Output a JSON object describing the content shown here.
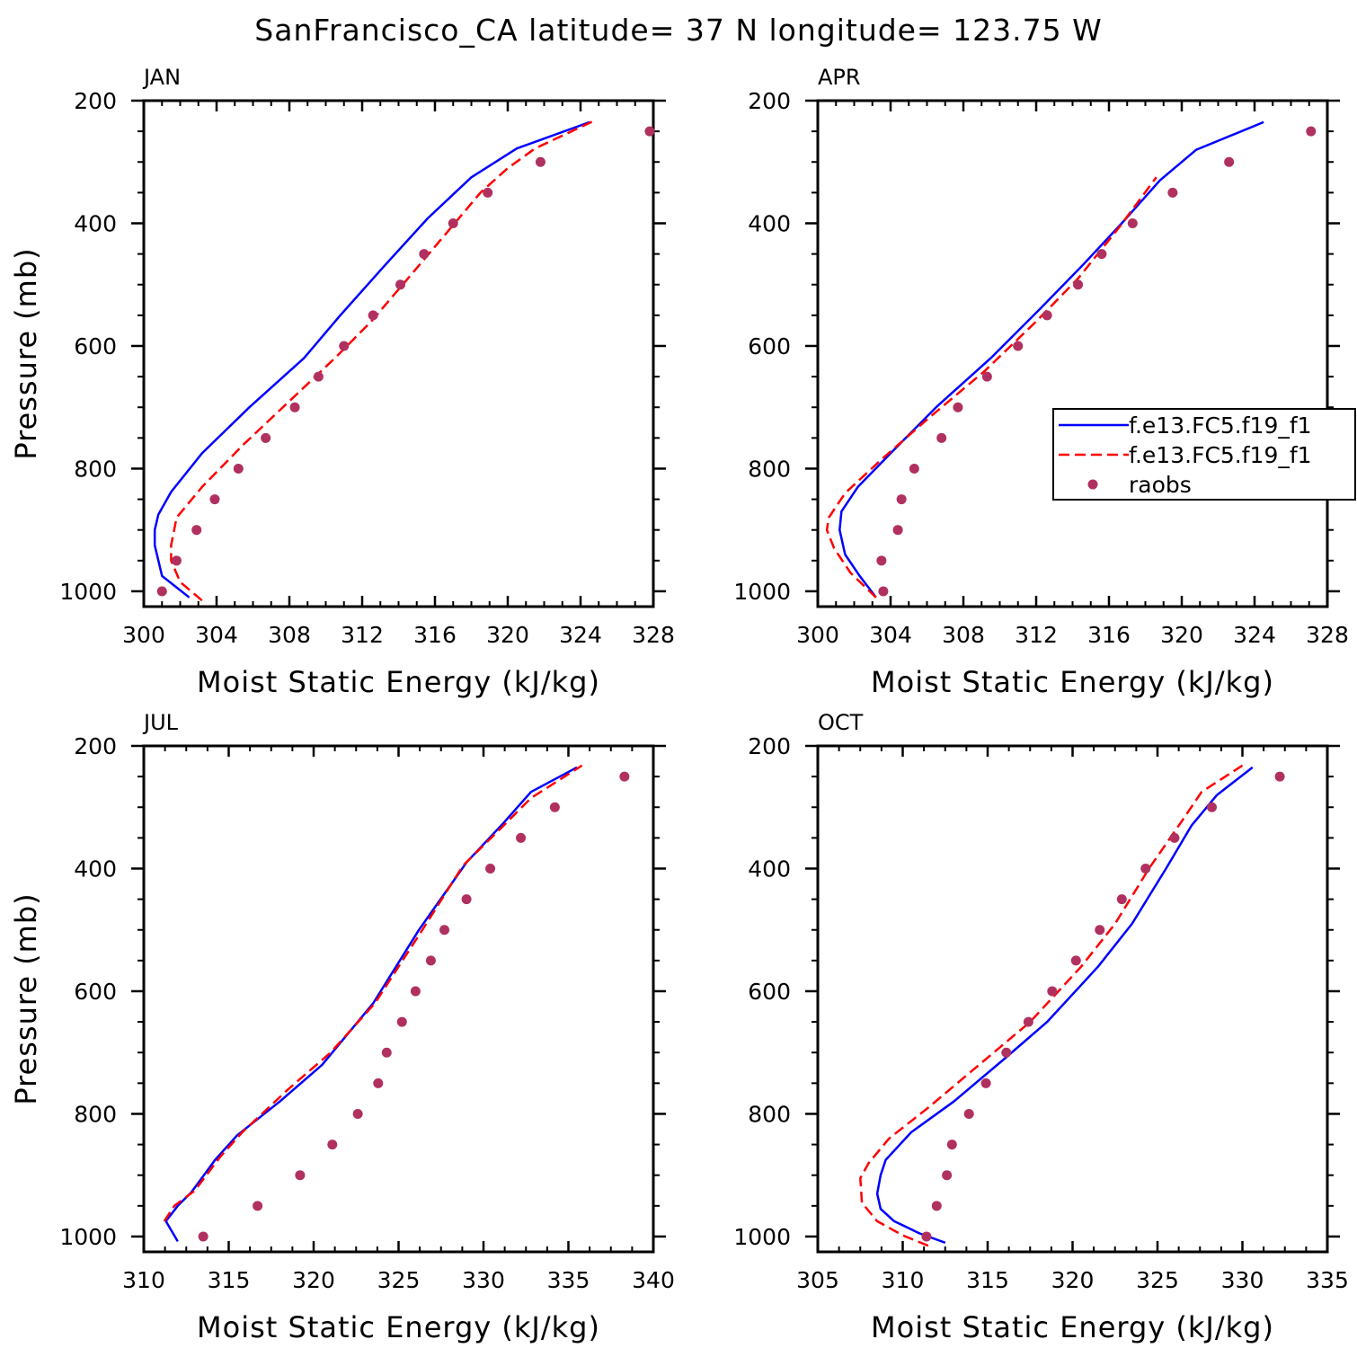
{
  "title": "SanFrancisco_CA  latitude= 37 N longitude= 123.75 W",
  "colors": {
    "model1": "#0000ff",
    "model2": "#ff0000",
    "raobs": "#b03060"
  },
  "legend": {
    "placement": "right",
    "entries": [
      {
        "label": "f.e13.FC5.f19_f1",
        "style": "solid-line",
        "color": "#0000ff"
      },
      {
        "label": "f.e13.FC5.f19_f1",
        "style": "dashed-line",
        "color": "#ff0000"
      },
      {
        "label": "raobs",
        "style": "marker",
        "color": "#b03060"
      }
    ]
  },
  "chart_data": [
    {
      "type": "line",
      "title": "JAN",
      "xlabel": "Moist Static Energy (kJ/kg)",
      "ylabel": "Pressure (mb)",
      "xlim": [
        300,
        328
      ],
      "ylim": [
        1025,
        200
      ],
      "xticks": [
        300,
        304,
        308,
        312,
        316,
        320,
        324,
        328
      ],
      "yticks": [
        200,
        400,
        600,
        800,
        1000
      ],
      "series": [
        {
          "style": "solid",
          "color": "#0000ff",
          "points": [
            [
              302.5,
              1010
            ],
            [
              301.0,
              975
            ],
            [
              300.6,
              925
            ],
            [
              300.6,
              900
            ],
            [
              300.8,
              875
            ],
            [
              301.5,
              838
            ],
            [
              303.2,
              775
            ],
            [
              305.8,
              700
            ],
            [
              308.8,
              620
            ],
            [
              310.8,
              550
            ],
            [
              313.2,
              470
            ],
            [
              315.6,
              392
            ],
            [
              318.0,
              325
            ],
            [
              320.5,
              278
            ],
            [
              324.5,
              235
            ]
          ]
        },
        {
          "style": "dashed",
          "color": "#ff0000",
          "points": [
            [
              303.2,
              1015
            ],
            [
              302.0,
              985
            ],
            [
              301.5,
              950
            ],
            [
              301.5,
              925
            ],
            [
              301.8,
              880
            ],
            [
              303.2,
              830
            ],
            [
              305.5,
              760
            ],
            [
              308.0,
              690
            ],
            [
              310.5,
              620
            ],
            [
              312.5,
              560
            ],
            [
              314.8,
              480
            ],
            [
              316.8,
              410
            ],
            [
              318.5,
              350
            ],
            [
              320.0,
              310
            ],
            [
              321.5,
              278
            ],
            [
              324.8,
              232
            ]
          ]
        },
        {
          "style": "marker",
          "color": "#b03060",
          "points": [
            [
              301.0,
              1000
            ],
            [
              301.8,
              950
            ],
            [
              302.9,
              900
            ],
            [
              303.9,
              850
            ],
            [
              305.2,
              800
            ],
            [
              306.7,
              750
            ],
            [
              308.3,
              700
            ],
            [
              309.6,
              650
            ],
            [
              311.0,
              600
            ],
            [
              312.6,
              550
            ],
            [
              314.1,
              500
            ],
            [
              315.4,
              450
            ],
            [
              317.0,
              400
            ],
            [
              318.9,
              350
            ],
            [
              321.8,
              300
            ],
            [
              327.8,
              250
            ]
          ]
        }
      ]
    },
    {
      "type": "line",
      "title": "APR",
      "xlabel": "Moist Static Energy (kJ/kg)",
      "ylabel": "",
      "xlim": [
        300,
        328
      ],
      "ylim": [
        1025,
        200
      ],
      "xticks": [
        300,
        304,
        308,
        312,
        316,
        320,
        324,
        328
      ],
      "yticks": [
        200,
        400,
        600,
        800,
        1000
      ],
      "series": [
        {
          "style": "solid",
          "color": "#0000ff",
          "points": [
            [
              303.2,
              1010
            ],
            [
              302.3,
              975
            ],
            [
              301.5,
              940
            ],
            [
              301.2,
              900
            ],
            [
              301.3,
              870
            ],
            [
              302.2,
              830
            ],
            [
              304.0,
              775
            ],
            [
              306.5,
              700
            ],
            [
              309.5,
              620
            ],
            [
              312.2,
              540
            ],
            [
              314.5,
              470
            ],
            [
              316.7,
              400
            ],
            [
              318.8,
              330
            ],
            [
              320.8,
              280
            ],
            [
              324.5,
              235
            ]
          ]
        },
        {
          "style": "dashed",
          "color": "#ff0000",
          "points": [
            [
              303.2,
              1010
            ],
            [
              301.8,
              970
            ],
            [
              300.9,
              930
            ],
            [
              300.5,
              900
            ],
            [
              300.6,
              880
            ],
            [
              301.5,
              840
            ],
            [
              303.5,
              785
            ],
            [
              306.0,
              720
            ],
            [
              309.2,
              640
            ],
            [
              312.0,
              560
            ],
            [
              314.3,
              490
            ],
            [
              316.6,
              405
            ],
            [
              318.6,
              325
            ]
          ]
        },
        {
          "style": "marker",
          "color": "#b03060",
          "points": [
            [
              303.6,
              1000
            ],
            [
              303.5,
              950
            ],
            [
              304.4,
              900
            ],
            [
              304.6,
              850
            ],
            [
              305.3,
              800
            ],
            [
              306.8,
              750
            ],
            [
              307.7,
              700
            ],
            [
              309.3,
              650
            ],
            [
              311.0,
              600
            ],
            [
              312.6,
              550
            ],
            [
              314.3,
              500
            ],
            [
              315.6,
              450
            ],
            [
              317.3,
              400
            ],
            [
              319.5,
              350
            ],
            [
              322.6,
              300
            ],
            [
              327.1,
              250
            ]
          ]
        }
      ]
    },
    {
      "type": "line",
      "title": "JUL",
      "xlabel": "Moist Static Energy (kJ/kg)",
      "ylabel": "Pressure (mb)",
      "xlim": [
        310,
        340
      ],
      "ylim": [
        1025,
        200
      ],
      "xticks": [
        310,
        315,
        320,
        325,
        330,
        335,
        340
      ],
      "yticks": [
        200,
        400,
        600,
        800,
        1000
      ],
      "series": [
        {
          "style": "solid",
          "color": "#0000ff",
          "points": [
            [
              312.0,
              1008
            ],
            [
              311.3,
              975
            ],
            [
              312.0,
              950
            ],
            [
              312.8,
              928
            ],
            [
              314.2,
              875
            ],
            [
              315.5,
              835
            ],
            [
              318.0,
              780
            ],
            [
              320.5,
              720
            ],
            [
              323.5,
              620
            ],
            [
              326.2,
              500
            ],
            [
              329.0,
              390
            ],
            [
              331.2,
              325
            ],
            [
              332.8,
              275
            ],
            [
              335.5,
              235
            ]
          ]
        },
        {
          "style": "dashed",
          "color": "#ff0000",
          "points": [
            [
              311.2,
              975
            ],
            [
              311.8,
              950
            ],
            [
              313.0,
              925
            ],
            [
              314.5,
              870
            ],
            [
              315.8,
              830
            ],
            [
              318.5,
              760
            ],
            [
              321.0,
              700
            ],
            [
              323.6,
              620
            ],
            [
              326.4,
              500
            ],
            [
              328.8,
              395
            ],
            [
              331.0,
              335
            ],
            [
              332.8,
              285
            ],
            [
              335.8,
              232
            ]
          ]
        },
        {
          "style": "marker",
          "color": "#b03060",
          "points": [
            [
              313.5,
              1000
            ],
            [
              316.7,
              950
            ],
            [
              319.2,
              900
            ],
            [
              321.1,
              850
            ],
            [
              322.6,
              800
            ],
            [
              323.8,
              750
            ],
            [
              324.3,
              700
            ],
            [
              325.2,
              650
            ],
            [
              326.0,
              600
            ],
            [
              326.9,
              550
            ],
            [
              327.7,
              500
            ],
            [
              329.0,
              450
            ],
            [
              330.4,
              400
            ],
            [
              332.2,
              350
            ],
            [
              334.2,
              300
            ],
            [
              338.3,
              250
            ]
          ]
        }
      ]
    },
    {
      "type": "line",
      "title": "OCT",
      "xlabel": "Moist Static Energy (kJ/kg)",
      "ylabel": "",
      "xlim": [
        305,
        335
      ],
      "ylim": [
        1025,
        200
      ],
      "xticks": [
        305,
        310,
        315,
        320,
        325,
        330,
        335
      ],
      "yticks": [
        200,
        400,
        600,
        800,
        1000
      ],
      "series": [
        {
          "style": "solid",
          "color": "#0000ff",
          "points": [
            [
              312.5,
              1010
            ],
            [
              311.0,
              995
            ],
            [
              309.5,
              975
            ],
            [
              308.7,
              955
            ],
            [
              308.5,
              930
            ],
            [
              308.7,
              900
            ],
            [
              309.0,
              875
            ],
            [
              310.5,
              830
            ],
            [
              313.0,
              780
            ],
            [
              316.0,
              710
            ],
            [
              318.5,
              650
            ],
            [
              321.5,
              560
            ],
            [
              323.5,
              490
            ],
            [
              325.5,
              400
            ],
            [
              327.0,
              330
            ],
            [
              328.5,
              280
            ],
            [
              330.6,
              235
            ]
          ]
        },
        {
          "style": "dashed",
          "color": "#ff0000",
          "points": [
            [
              311.5,
              1015
            ],
            [
              310.0,
              998
            ],
            [
              308.5,
              975
            ],
            [
              307.6,
              945
            ],
            [
              307.5,
              905
            ],
            [
              308.0,
              880
            ],
            [
              309.2,
              840
            ],
            [
              311.5,
              790
            ],
            [
              314.5,
              720
            ],
            [
              317.5,
              650
            ],
            [
              320.5,
              560
            ],
            [
              322.5,
              490
            ],
            [
              324.5,
              400
            ],
            [
              326.5,
              320
            ],
            [
              327.6,
              275
            ],
            [
              330.0,
              232
            ]
          ]
        },
        {
          "style": "marker",
          "color": "#b03060",
          "points": [
            [
              311.4,
              1000
            ],
            [
              312.0,
              950
            ],
            [
              312.6,
              900
            ],
            [
              312.9,
              850
            ],
            [
              313.9,
              800
            ],
            [
              314.9,
              750
            ],
            [
              316.1,
              700
            ],
            [
              317.4,
              650
            ],
            [
              318.8,
              600
            ],
            [
              320.2,
              550
            ],
            [
              321.6,
              500
            ],
            [
              322.9,
              450
            ],
            [
              324.3,
              400
            ],
            [
              326.0,
              350
            ],
            [
              328.2,
              300
            ],
            [
              332.2,
              250
            ]
          ]
        }
      ]
    }
  ]
}
